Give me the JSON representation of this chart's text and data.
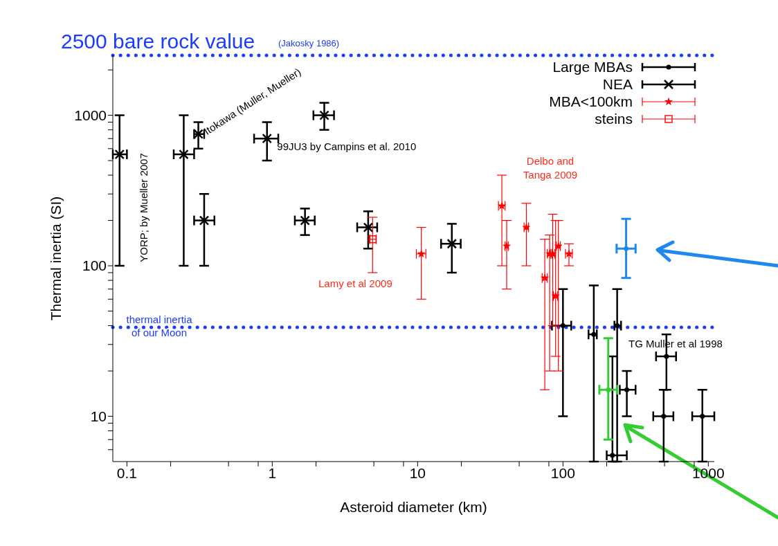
{
  "chart_data": {
    "type": "scatter",
    "xlabel": "Asteroid diameter (km)",
    "ylabel": "Thermal inertia (SI)",
    "log": "xy",
    "legend": "top right",
    "xlim": [
      0.08,
      1100
    ],
    "ylim": [
      5,
      2500
    ],
    "xticks": [
      0.1,
      {
        "value": 0.2,
        "label": null
      },
      {
        "value": 0.5,
        "label": null
      },
      {
        "value": 0.8,
        "label": null
      },
      1,
      {
        "value": 2,
        "label": null
      },
      {
        "value": 5,
        "label": null
      },
      {
        "value": 8,
        "label": null
      },
      10,
      {
        "value": 20,
        "label": null
      },
      {
        "value": 50,
        "label": null
      },
      {
        "value": 80,
        "label": null
      },
      100,
      {
        "value": 200,
        "label": null
      },
      {
        "value": 500,
        "label": null
      },
      {
        "value": 800,
        "label": null
      },
      1000
    ],
    "yticks": [
      {
        "value": 6,
        "label": null
      },
      {
        "value": 7,
        "label": null
      },
      {
        "value": 8,
        "label": null
      },
      {
        "value": 9,
        "label": null
      },
      10,
      {
        "value": 20,
        "label": null
      },
      {
        "value": 30,
        "label": null
      },
      {
        "value": 40,
        "label": null
      },
      {
        "value": 50,
        "label": null
      },
      {
        "value": 60,
        "label": null
      },
      {
        "value": 70,
        "label": null
      },
      {
        "value": 80,
        "label": null
      },
      {
        "value": 90,
        "label": null
      },
      100,
      {
        "value": 200,
        "label": null
      },
      {
        "value": 300,
        "label": null
      },
      {
        "value": 400,
        "label": null
      },
      {
        "value": 500,
        "label": null
      },
      {
        "value": 600,
        "label": null
      },
      {
        "value": 700,
        "label": null
      },
      {
        "value": 800,
        "label": null
      },
      {
        "value": 900,
        "label": null
      },
      1000,
      {
        "value": 2000,
        "label": null
      }
    ],
    "series": [
      {
        "name": "Large MBAs",
        "color": "#000000",
        "marker": "circle",
        "x": [
          100,
          163,
          236,
          219,
          275,
          515,
          493,
          910
        ],
        "values": [
          40,
          35,
          40,
          5.5,
          15,
          25,
          10,
          10
        ],
        "errors": [
          [
            10,
            70
          ],
          [
            5,
            74
          ],
          [
            5,
            70
          ],
          [
            5,
            25
          ],
          [
            10,
            20
          ],
          [
            15,
            35
          ],
          [
            5,
            15
          ],
          [
            5,
            15
          ]
        ],
        "xerrors": [
          [
            84,
            114
          ],
          [
            150,
            171
          ],
          [
            226,
            251
          ],
          [
            200,
            275
          ],
          [
            246,
            316
          ],
          [
            437,
            600
          ],
          [
            418,
            575
          ],
          [
            775,
            1100
          ]
        ]
      },
      {
        "name": "NEA",
        "color": "#000000",
        "marker": "cross",
        "x": [
          0.089,
          0.246,
          0.31,
          0.34,
          0.92,
          2.28,
          1.68,
          4.57,
          17.2
        ],
        "values": [
          550,
          550,
          750,
          200,
          700,
          1000,
          200,
          180,
          140
        ],
        "errors": [
          [
            100,
            1000
          ],
          [
            100,
            1000
          ],
          [
            600,
            900
          ],
          [
            100,
            300
          ],
          [
            500,
            900
          ],
          [
            800,
            1210
          ],
          [
            160,
            240
          ],
          [
            130,
            230
          ],
          [
            90,
            190
          ]
        ],
        "xerrors": [
          [
            0.08,
            0.1
          ],
          [
            0.21,
            0.29
          ],
          [
            0.29,
            0.34
          ],
          [
            0.29,
            0.4
          ],
          [
            0.75,
            1.1
          ],
          [
            1.92,
            2.66
          ],
          [
            1.43,
            1.96
          ],
          [
            3.84,
            5.27
          ],
          [
            14.5,
            19.8
          ]
        ]
      },
      {
        "name": "MBA<100km",
        "color": "#ff0000",
        "marker": "star",
        "x": [
          10.6,
          38,
          41,
          56,
          75,
          81,
          85,
          89,
          93,
          110
        ],
        "values": [
          120,
          250,
          135,
          180,
          83,
          120,
          120,
          63,
          135,
          120
        ],
        "errors": [
          [
            60,
            180
          ],
          [
            100,
            400
          ],
          [
            70,
            200
          ],
          [
            100,
            260
          ],
          [
            15,
            150
          ],
          [
            20,
            160
          ],
          [
            40,
            220
          ],
          [
            25,
            200
          ],
          [
            20,
            200
          ],
          [
            100,
            140
          ]
        ],
        "xerrors": [
          [
            9.8,
            11.4
          ],
          [
            36,
            40
          ],
          [
            40,
            42
          ],
          [
            54,
            58
          ],
          [
            72,
            78
          ],
          [
            78,
            84
          ],
          [
            82,
            88
          ],
          [
            86,
            92
          ],
          [
            90,
            96
          ],
          [
            104,
            116
          ]
        ]
      },
      {
        "name": "steins",
        "color": "#ff0000",
        "marker": "square",
        "x": [
          4.9
        ],
        "values": [
          150
        ],
        "errors": [
          [
            90,
            210
          ]
        ],
        "xerrors": [
          [
            4.7,
            5.2
          ]
        ]
      },
      {
        "color": "#1e88f0",
        "marker": "circle",
        "x": [
          272
        ],
        "values": [
          130
        ],
        "errors": [
          [
            83,
            205
          ]
        ],
        "xerrors": [
          [
            234,
            316
          ]
        ]
      },
      {
        "color": "#33cc33",
        "marker": "circle",
        "x": [
          205
        ],
        "values": [
          15
        ],
        "errors": [
          [
            7,
            33
          ]
        ],
        "xerrors": [
          [
            178,
            236
          ]
        ]
      }
    ],
    "ref_lines": [
      {
        "axis": "y",
        "value": 2500,
        "label": "2500 bare rock value",
        "color": "#1a3cff",
        "line_style": "dotted"
      },
      {
        "axis": "y",
        "value": 39,
        "label": "thermal inertia of our Moon",
        "color": "#1a3cff",
        "line_style": "dotted"
      }
    ],
    "annotations": [
      "(Jakosky 1986)",
      "YORP; by Mueller 2007",
      {
        "text": "Itokawa (Muller, Mueller)",
        "x": 0.345,
        "y": 770
      },
      {
        "text": "99JU3 by Campins et al. 2010",
        "x": 1.08,
        "y": 620
      },
      "Delbo and Tanga 2009",
      "Lamy et al 2009",
      "TG Muller et al 1998"
    ]
  }
}
